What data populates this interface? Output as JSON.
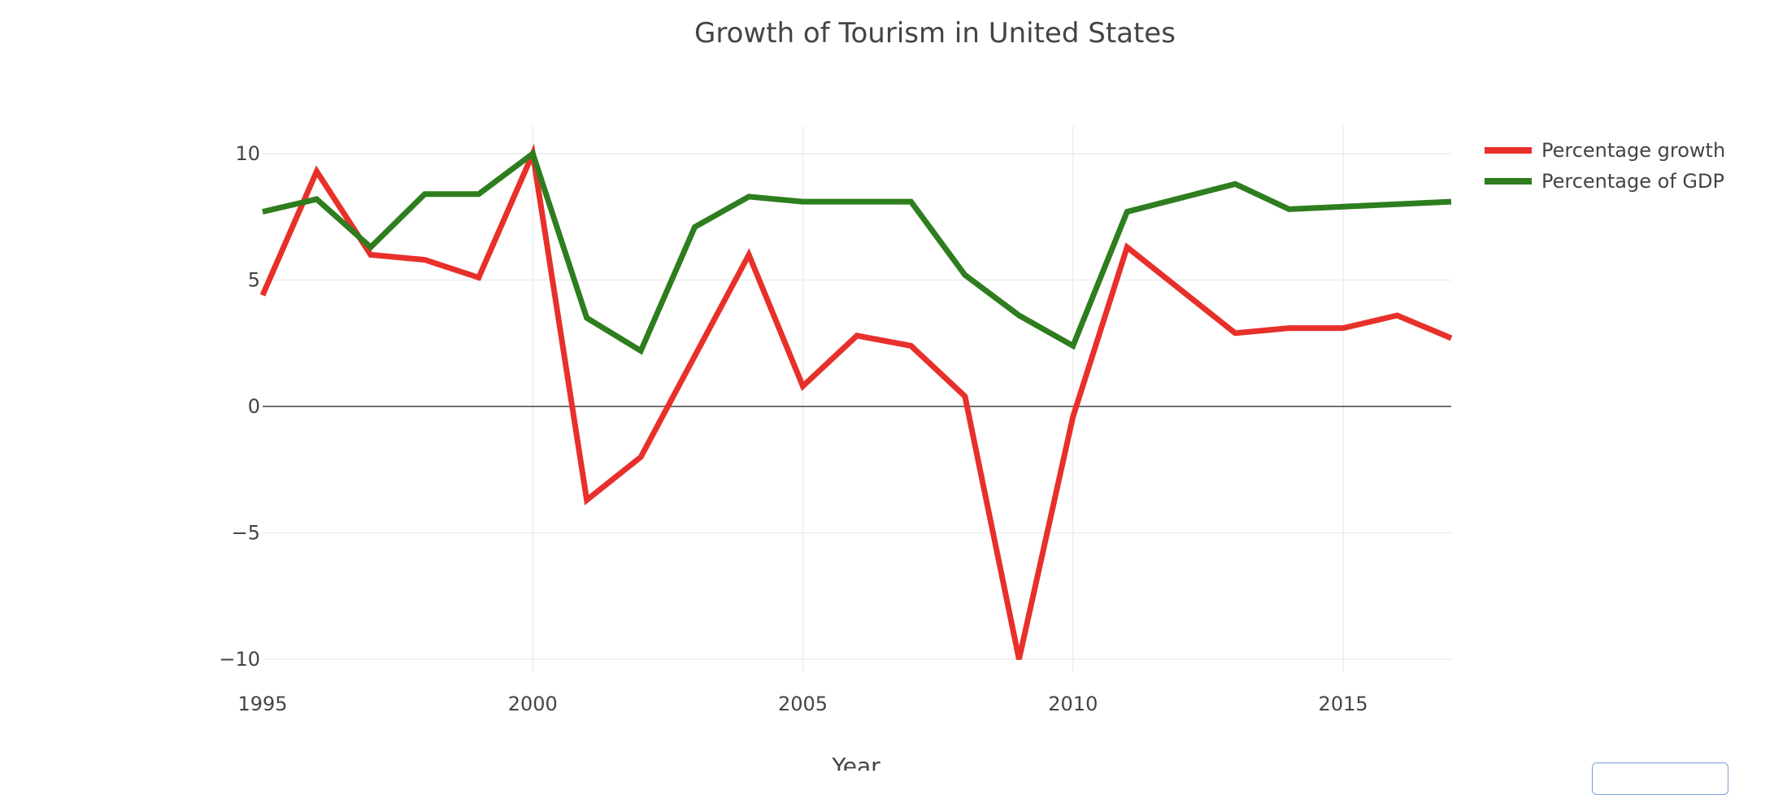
{
  "chart_data": {
    "type": "line",
    "title": "Growth of Tourism in United States",
    "xlabel": "Year",
    "ylabel": "",
    "xlim": [
      1995,
      2017
    ],
    "ylim": [
      -10,
      11
    ],
    "x_ticks": [
      1995,
      2000,
      2005,
      2010,
      2015
    ],
    "y_ticks": [
      -10,
      -5,
      0,
      5,
      10
    ],
    "y_tick_labels": [
      "−10",
      "−5",
      "0",
      "5",
      "10"
    ],
    "grid": true,
    "legend_position": "top-right",
    "series": [
      {
        "name": "Percentage growth",
        "color": "#e8302a",
        "x": [
          1995,
          1996,
          1997,
          1998,
          1999,
          2000,
          2001,
          2002,
          2004,
          2005,
          2006,
          2007,
          2008,
          2009,
          2010,
          2011,
          2013,
          2014,
          2015,
          2016,
          2017
        ],
        "y": [
          4.4,
          9.3,
          6.0,
          5.8,
          5.1,
          10.0,
          -3.7,
          -2.0,
          6.0,
          0.8,
          2.8,
          2.4,
          0.4,
          -10.0,
          -0.4,
          6.3,
          2.9,
          3.1,
          3.1,
          3.6,
          2.7
        ]
      },
      {
        "name": "Percentage of GDP",
        "color": "#2e7d1e",
        "x": [
          1995,
          1996,
          1997,
          1998,
          1999,
          2000,
          2001,
          2002,
          2003,
          2004,
          2005,
          2007,
          2008,
          2009,
          2010,
          2011,
          2013,
          2014,
          2015,
          2017
        ],
        "y": [
          7.7,
          8.2,
          6.3,
          8.4,
          8.4,
          10.0,
          3.5,
          2.2,
          7.1,
          8.3,
          8.1,
          8.1,
          5.2,
          3.6,
          2.4,
          7.7,
          8.8,
          7.8,
          7.9,
          8.1
        ]
      }
    ]
  }
}
